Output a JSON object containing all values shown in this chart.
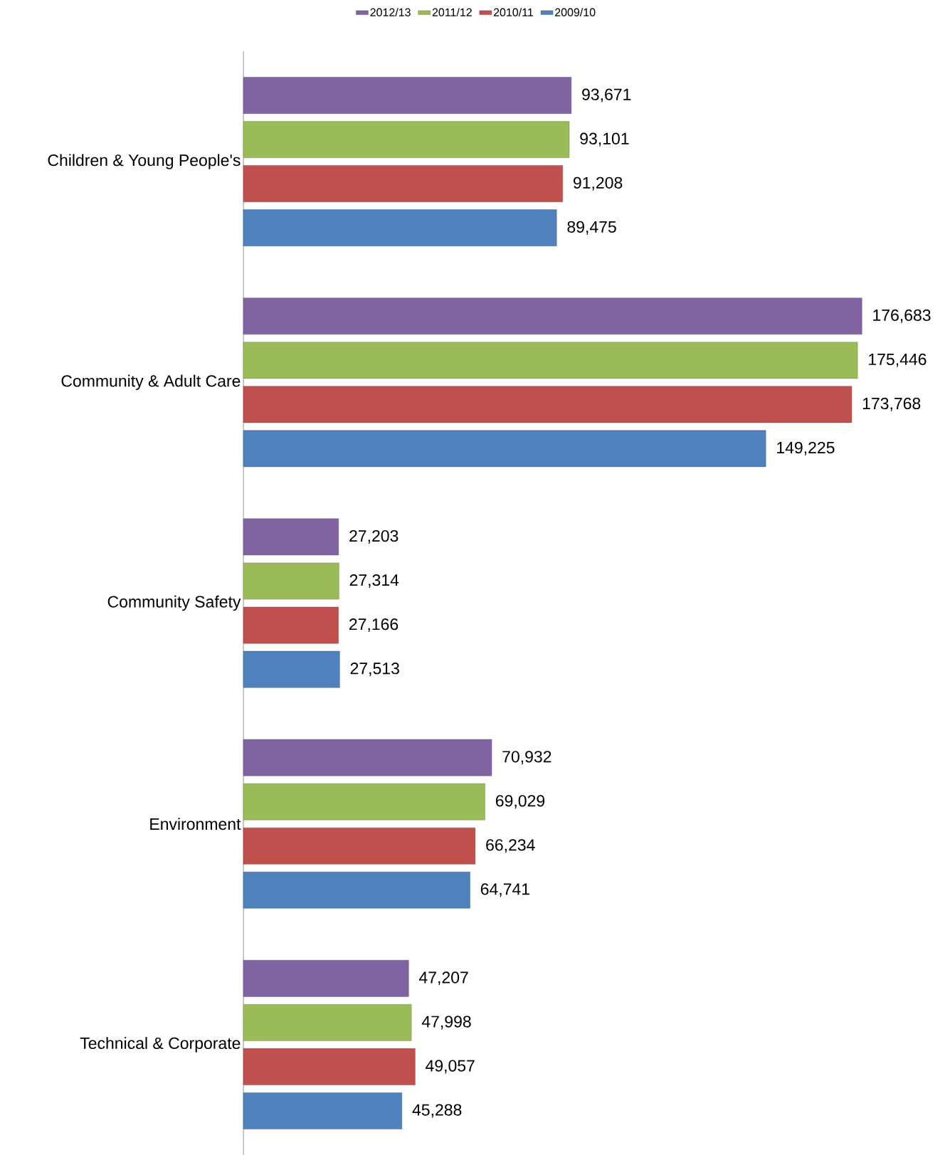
{
  "chart_data": {
    "type": "bar",
    "orientation": "horizontal",
    "legend": "top",
    "categories": [
      "Children & Young People's",
      "Community & Adult Care",
      "Community Safety",
      "Environment",
      "Technical & Corporate"
    ],
    "series": [
      {
        "name": "2012/13",
        "color": "#8064a2",
        "values": [
          93671,
          176683,
          27203,
          70932,
          47207
        ],
        "value_labels": [
          "93,671",
          "176,683",
          "27,203",
          "70,932",
          "47,207"
        ]
      },
      {
        "name": "2011/12",
        "color": "#9bbb59",
        "values": [
          93101,
          175446,
          27314,
          69029,
          47998
        ],
        "value_labels": [
          "93,101",
          "175,446",
          "27,314",
          "69,029",
          "47,998"
        ]
      },
      {
        "name": "2010/11",
        "color": "#c0504d",
        "values": [
          91208,
          173768,
          27166,
          66234,
          49057
        ],
        "value_labels": [
          "91,208",
          "173,768",
          "27,166",
          "66,234",
          "49,057"
        ]
      },
      {
        "name": "2009/10",
        "color": "#4f81bd",
        "values": [
          89475,
          149225,
          27513,
          64741,
          45288
        ],
        "value_labels": [
          "89,475",
          "149,225",
          "27,513",
          "64,741",
          "45,288"
        ]
      }
    ]
  }
}
